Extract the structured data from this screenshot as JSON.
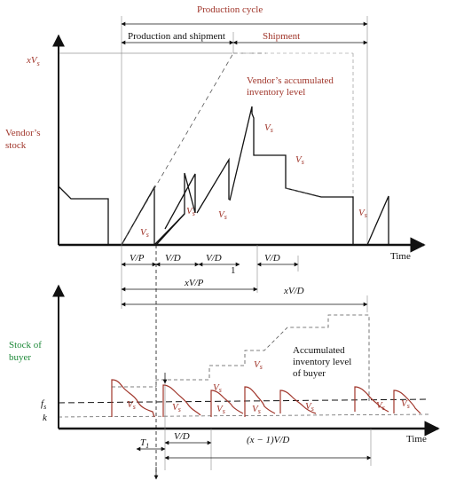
{
  "top_chart": {
    "y_axis_label_line1": "Vendor’s",
    "y_axis_label_line2": "stock",
    "x_axis_label": "Time",
    "y_level_label": "xV",
    "y_level_sub": "s",
    "cycle_title": "Production cycle",
    "phase_production_shipment": "Production and shipment",
    "phase_shipment": "Shipment",
    "inventory_label_line1": "Vendor’s  accumulated",
    "inventory_label_line2": "inventory level",
    "batch_label": "V",
    "batch_sub": "s",
    "dim_vs_pr": "V/P",
    "dim_vs_db": "V/D",
    "dim_xvs_pr": "xV/P",
    "dim_xvs_db": "xV/D",
    "stray_mark": "1"
  },
  "bottom_chart": {
    "y_axis_label_line1": "Stock   of",
    "y_axis_label_line2": "buyer",
    "x_axis_label": "Time",
    "fs_label": "f",
    "fs_sub": "s",
    "k_label": "k",
    "inventory_label_line1": "Accumulated",
    "inventory_label_line2": "inventory  level",
    "inventory_label_line3": "of buyer",
    "batch_label": "V",
    "batch_sub": "s",
    "t_label": "T",
    "dim_vs_db": "V/D",
    "dim_x1_vs_db": "(x − 1)V/D"
  },
  "colors": {
    "axis": "#111111",
    "guide": "#555555",
    "red_text": "#a0352a",
    "green_text": "#1f8a3a"
  }
}
